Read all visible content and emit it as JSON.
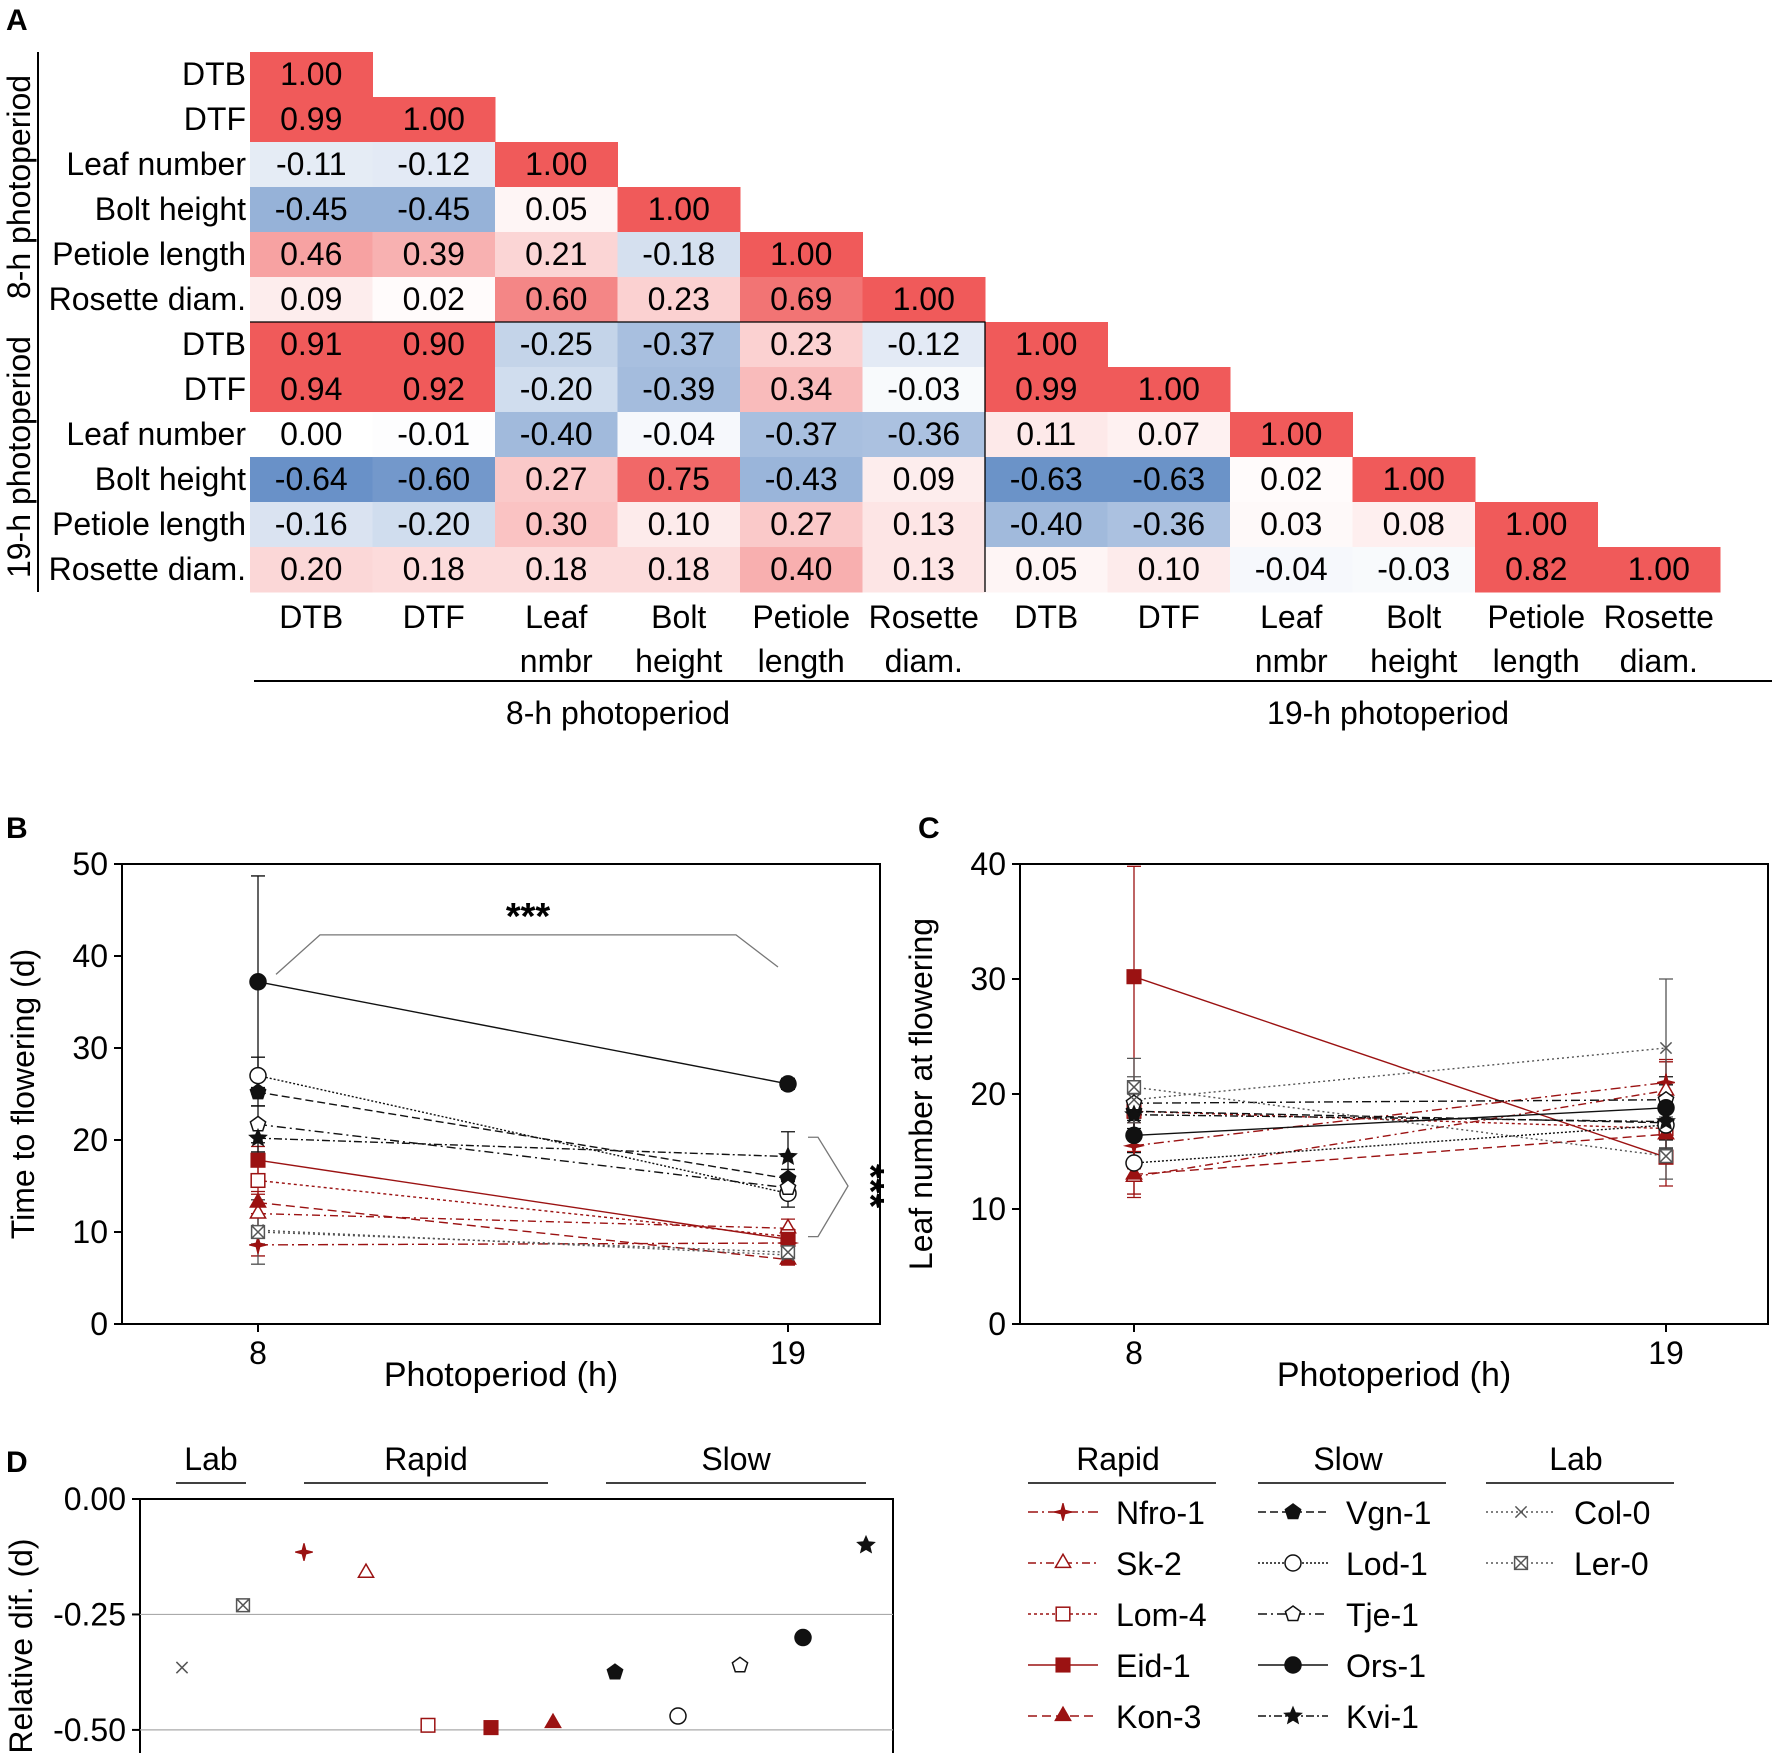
{
  "panels": {
    "a": "A",
    "b": "B",
    "c": "C",
    "d": "D"
  },
  "colors": {
    "rapid": "#9b1212",
    "slow": "#111111",
    "lab": "#555555",
    "pos": "#f05a5a",
    "neg": "#3f72b8"
  },
  "chart_data": [
    {
      "type": "heatmap",
      "panel": "A",
      "title": "",
      "group_labels": [
        "8-h photoperiod",
        "19-h photoperiod"
      ],
      "row_labels": [
        "DTB",
        "DTF",
        "Leaf number",
        "Bolt height",
        "Petiole length",
        "Rosette diam.",
        "DTB",
        "DTF",
        "Leaf number",
        "Bolt height",
        "Petiole length",
        "Rosette diam."
      ],
      "col_labels": [
        [
          "DTB"
        ],
        [
          "DTF"
        ],
        [
          "Leaf",
          "nmbr"
        ],
        [
          "Bolt",
          "height"
        ],
        [
          "Petiole",
          "length"
        ],
        [
          "Rosette",
          "diam."
        ],
        [
          "DTB"
        ],
        [
          "DTF"
        ],
        [
          "Leaf",
          "nmbr"
        ],
        [
          "Bolt",
          "height"
        ],
        [
          "Petiole",
          "length"
        ],
        [
          "Rosette",
          "diam."
        ]
      ],
      "values": [
        [
          "1.00"
        ],
        [
          "0.99",
          "1.00"
        ],
        [
          "-0.11",
          "-0.12",
          "1.00"
        ],
        [
          "-0.45",
          "-0.45",
          "0.05",
          "1.00"
        ],
        [
          "0.46",
          "0.39",
          "0.21",
          "-0.18",
          "1.00"
        ],
        [
          "0.09",
          "0.02",
          "0.60",
          "0.23",
          "0.69",
          "1.00"
        ],
        [
          "0.91",
          "0.90",
          "-0.25",
          "-0.37",
          "0.23",
          "-0.12",
          "1.00"
        ],
        [
          "0.94",
          "0.92",
          "-0.20",
          "-0.39",
          "0.34",
          "-0.03",
          "0.99",
          "1.00"
        ],
        [
          "0.00",
          "-0.01",
          "-0.40",
          "-0.04",
          "-0.37",
          "-0.36",
          "0.11",
          "0.07",
          "1.00"
        ],
        [
          "-0.64",
          "-0.60",
          "0.27",
          "0.75",
          "-0.43",
          "0.09",
          "-0.63",
          "-0.63",
          "0.02",
          "1.00"
        ],
        [
          "-0.16",
          "-0.20",
          "0.30",
          "0.10",
          "0.27",
          "0.13",
          "-0.40",
          "-0.36",
          "0.03",
          "0.08",
          "1.00"
        ],
        [
          "0.20",
          "0.18",
          "0.18",
          "0.18",
          "0.40",
          "0.13",
          "0.05",
          "0.10",
          "-0.04",
          "-0.03",
          "0.82",
          "1.00"
        ]
      ]
    },
    {
      "type": "line",
      "panel": "B",
      "xlabel": "Photoperiod (h)",
      "ylabel": "Time to flowering (d)",
      "x": [
        8,
        19
      ],
      "xticks": [
        "8",
        "19"
      ],
      "yticks": [
        "0",
        "10",
        "20",
        "30",
        "40",
        "50"
      ],
      "ylim": [
        0,
        50
      ],
      "sig": [
        "***",
        "***"
      ],
      "series": [
        {
          "name": "Nfro-1",
          "values": [
            8.6,
            8.8
          ],
          "err": [
            1.2,
            0.8
          ]
        },
        {
          "name": "Sk-2",
          "values": [
            12.0,
            10.4
          ],
          "err": [
            1.5,
            1.0
          ]
        },
        {
          "name": "Lom-4",
          "values": [
            15.6,
            9.5
          ],
          "err": [
            1.5,
            0.8
          ]
        },
        {
          "name": "Eid-1",
          "values": [
            17.8,
            9.2
          ],
          "err": [
            1.5,
            1.0
          ]
        },
        {
          "name": "Kon-3",
          "values": [
            13.2,
            7.0
          ],
          "err": [
            1.2,
            0.6
          ]
        },
        {
          "name": "Vgn-1",
          "values": [
            25.2,
            15.8
          ],
          "err": [
            1.5,
            1.0
          ]
        },
        {
          "name": "Lod-1",
          "values": [
            27.0,
            14.2
          ],
          "err": [
            2.0,
            1.5
          ]
        },
        {
          "name": "Tje-1",
          "values": [
            21.7,
            14.8
          ],
          "err": [
            2.0,
            1.0
          ]
        },
        {
          "name": "Ors-1",
          "values": [
            37.2,
            26.1
          ],
          "err": [
            11.5,
            0.6
          ]
        },
        {
          "name": "Kvi-1",
          "values": [
            20.2,
            18.2
          ],
          "err": [
            1.5,
            2.7
          ]
        },
        {
          "name": "Col-0",
          "values": [
            10.2,
            7.5
          ],
          "err": [
            1.5,
            0.8
          ]
        },
        {
          "name": "Ler-0",
          "values": [
            10.0,
            7.8
          ],
          "err": [
            3.5,
            1.0
          ]
        }
      ]
    },
    {
      "type": "line",
      "panel": "C",
      "xlabel": "Photoperiod (h)",
      "ylabel": "Leaf number at flowering",
      "x": [
        8,
        19
      ],
      "xticks": [
        "8",
        "19"
      ],
      "yticks": [
        "0",
        "10",
        "20",
        "30",
        "40"
      ],
      "ylim": [
        0,
        40
      ],
      "series": [
        {
          "name": "Nfro-1",
          "values": [
            15.5,
            21.0
          ],
          "err": [
            2.0,
            2.0
          ]
        },
        {
          "name": "Sk-2",
          "values": [
            12.8,
            20.3
          ],
          "err": [
            1.5,
            2.5
          ]
        },
        {
          "name": "Lom-4",
          "values": [
            18.5,
            17.0
          ],
          "err": [
            2.0,
            2.0
          ]
        },
        {
          "name": "Eid-1",
          "values": [
            30.2,
            14.5
          ],
          "err": [
            9.6,
            2.5
          ]
        },
        {
          "name": "Kon-3",
          "values": [
            13.0,
            16.5
          ],
          "err": [
            2.0,
            2.0
          ]
        },
        {
          "name": "Vgn-1",
          "values": [
            18.5,
            17.5
          ],
          "err": [
            1.5,
            1.5
          ]
        },
        {
          "name": "Lod-1",
          "values": [
            14.0,
            17.3
          ],
          "err": [
            1.5,
            2.0
          ]
        },
        {
          "name": "Tje-1",
          "values": [
            19.2,
            19.5
          ],
          "err": [
            1.5,
            2.0
          ]
        },
        {
          "name": "Ors-1",
          "values": [
            16.4,
            18.8
          ],
          "err": [
            1.5,
            2.0
          ]
        },
        {
          "name": "Kvi-1",
          "values": [
            18.2,
            17.6
          ],
          "err": [
            2.0,
            2.5
          ]
        },
        {
          "name": "Col-0",
          "values": [
            19.5,
            24.0
          ],
          "err": [
            2.0,
            6.0
          ]
        },
        {
          "name": "Ler-0",
          "values": [
            20.6,
            14.6
          ],
          "err": [
            2.5,
            2.0
          ]
        }
      ]
    },
    {
      "type": "scatter",
      "panel": "D",
      "ylabel": "Relative dif. (d)",
      "yticks": [
        "0.00",
        "-0.25",
        "-0.50"
      ],
      "ylim": [
        -0.55,
        0.0
      ],
      "reference_lines": [
        -0.25,
        -0.5
      ],
      "groups": [
        "Lab",
        "Rapid",
        "Slow"
      ],
      "points": [
        {
          "name": "Col-0",
          "value": -0.365
        },
        {
          "name": "Ler-0",
          "value": -0.23
        },
        {
          "name": "Nfro-1",
          "value": -0.115
        },
        {
          "name": "Sk-2",
          "value": -0.16
        },
        {
          "name": "Lom-4",
          "value": -0.49
        },
        {
          "name": "Eid-1",
          "value": -0.495
        },
        {
          "name": "Kon-3",
          "value": -0.485
        },
        {
          "name": "Vgn-1",
          "value": -0.375
        },
        {
          "name": "Lod-1",
          "value": -0.47
        },
        {
          "name": "Tje-1",
          "value": -0.36
        },
        {
          "name": "Ors-1",
          "value": -0.3
        },
        {
          "name": "Kvi-1",
          "value": -0.1
        }
      ]
    }
  ],
  "legend": {
    "groups": [
      {
        "title": "Rapid",
        "items": [
          "Nfro-1",
          "Sk-2",
          "Lom-4",
          "Eid-1",
          "Kon-3"
        ]
      },
      {
        "title": "Slow",
        "items": [
          "Vgn-1",
          "Lod-1",
          "Tje-1",
          "Ors-1",
          "Kvi-1"
        ]
      },
      {
        "title": "Lab",
        "items": [
          "Col-0",
          "Ler-0"
        ]
      }
    ]
  },
  "styles": {
    "Nfro-1": {
      "marker": "star4",
      "fill": true,
      "dash": "10,4,2,4",
      "color": "rapid"
    },
    "Sk-2": {
      "marker": "triangle",
      "fill": false,
      "dash": "8,4,2,4",
      "color": "rapid"
    },
    "Lom-4": {
      "marker": "square",
      "fill": false,
      "dash": "3,3",
      "color": "rapid"
    },
    "Eid-1": {
      "marker": "square",
      "fill": true,
      "dash": "",
      "color": "rapid"
    },
    "Kon-3": {
      "marker": "triangle",
      "fill": true,
      "dash": "9,5",
      "color": "rapid"
    },
    "Vgn-1": {
      "marker": "pentagon",
      "fill": true,
      "dash": "8,4",
      "color": "slow"
    },
    "Lod-1": {
      "marker": "circle",
      "fill": false,
      "dash": "2,2",
      "color": "slow"
    },
    "Tje-1": {
      "marker": "pentagon",
      "fill": false,
      "dash": "9,4,2,4",
      "color": "slow"
    },
    "Ors-1": {
      "marker": "circle",
      "fill": true,
      "dash": "",
      "color": "slow"
    },
    "Kvi-1": {
      "marker": "star5",
      "fill": true,
      "dash": "8,3,2,3",
      "color": "slow"
    },
    "Col-0": {
      "marker": "cross",
      "fill": false,
      "dash": "2,3",
      "color": "lab"
    },
    "Ler-0": {
      "marker": "boxx",
      "fill": false,
      "dash": "2,3",
      "color": "lab"
    }
  }
}
